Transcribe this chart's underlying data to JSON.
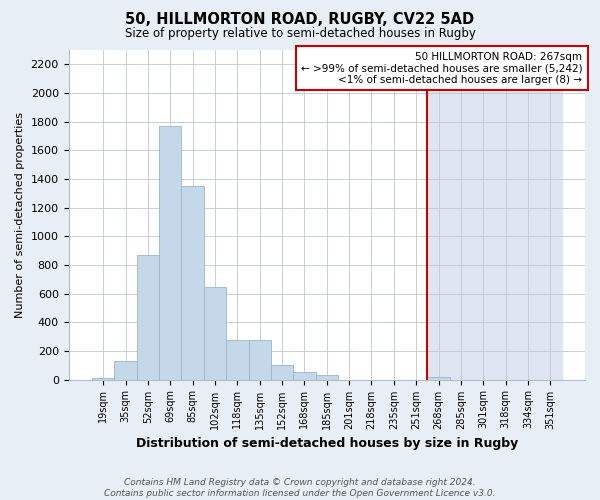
{
  "title": "50, HILLMORTON ROAD, RUGBY, CV22 5AD",
  "subtitle": "Size of property relative to semi-detached houses in Rugby",
  "xlabel": "Distribution of semi-detached houses by size in Rugby",
  "ylabel": "Number of semi-detached properties",
  "footer": "Contains HM Land Registry data © Crown copyright and database right 2024.\nContains public sector information licensed under the Open Government Licence v3.0.",
  "bar_labels": [
    "19sqm",
    "35sqm",
    "52sqm",
    "69sqm",
    "85sqm",
    "102sqm",
    "118sqm",
    "135sqm",
    "152sqm",
    "168sqm",
    "185sqm",
    "201sqm",
    "218sqm",
    "235sqm",
    "251sqm",
    "268sqm",
    "285sqm",
    "301sqm",
    "318sqm",
    "334sqm",
    "351sqm"
  ],
  "bar_values": [
    10,
    130,
    870,
    1770,
    1350,
    645,
    275,
    275,
    100,
    50,
    35,
    0,
    0,
    0,
    0,
    20,
    0,
    0,
    0,
    0,
    0
  ],
  "bar_color": "#c5d8ea",
  "bar_edge_color": "#9ab5cc",
  "highlight_index": 15,
  "highlight_color": "#cc0000",
  "annotation_text": "50 HILLMORTON ROAD: 267sqm\n← >99% of semi-detached houses are smaller (5,242)\n<1% of semi-detached houses are larger (8) →",
  "annotation_box_facecolor": "#ffffff",
  "annotation_box_edge": "#cc0000",
  "ylim": [
    0,
    2300
  ],
  "yticks": [
    0,
    200,
    400,
    600,
    800,
    1000,
    1200,
    1400,
    1600,
    1800,
    2000,
    2200
  ],
  "fig_bg_color": "#e8eef5",
  "plot_bg_color": "#ffffff",
  "highlight_bg_color": "#dde6f0"
}
